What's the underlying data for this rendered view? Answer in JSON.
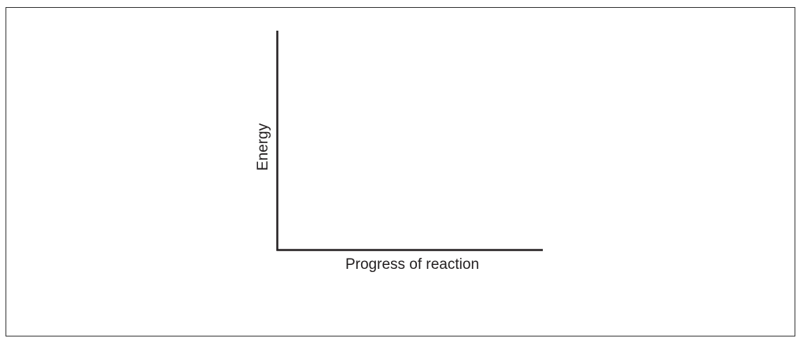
{
  "axes": {
    "y_label": "Energy",
    "x_label": "Progress of reaction"
  }
}
